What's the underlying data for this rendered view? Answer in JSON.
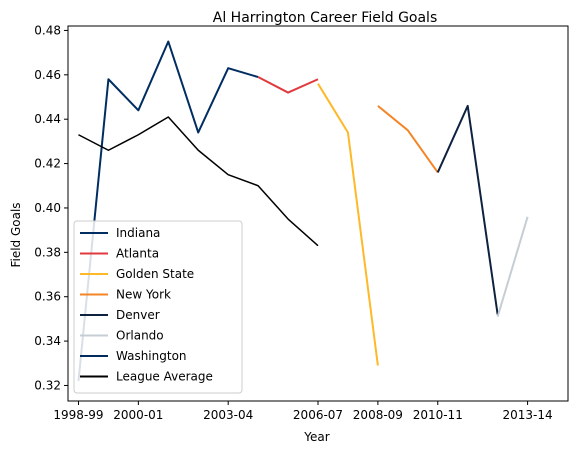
{
  "chart_data": {
    "type": "line",
    "title": "Al Harrington Career Field Goals",
    "xlabel": "Year",
    "ylabel": "Field Goals",
    "ylim": [
      0.313,
      0.482
    ],
    "xlim": [
      1997.65,
      2014.35
    ],
    "x_ticks": [
      {
        "x": 1998,
        "label": "1998-99"
      },
      {
        "x": 2000,
        "label": "2000-01"
      },
      {
        "x": 2003,
        "label": "2003-04"
      },
      {
        "x": 2006,
        "label": "2006-07"
      },
      {
        "x": 2008,
        "label": "2008-09"
      },
      {
        "x": 2010,
        "label": "2010-11"
      },
      {
        "x": 2013,
        "label": "2013-14"
      }
    ],
    "y_ticks": [
      0.32,
      0.34,
      0.36,
      0.38,
      0.4,
      0.42,
      0.44,
      0.46,
      0.48
    ],
    "legend_position": "lower-left",
    "series": [
      {
        "name": "Indiana",
        "color": "#002d62",
        "x": [
          1998,
          1999,
          2000,
          2001,
          2002,
          2003,
          2004
        ],
        "y": [
          0.322,
          0.458,
          0.444,
          0.475,
          0.434,
          0.463,
          0.459
        ]
      },
      {
        "name": "Atlanta",
        "color": "#e03a3e",
        "x": [
          2004,
          2005,
          2006
        ],
        "y": [
          0.459,
          0.452,
          0.458
        ]
      },
      {
        "name": "Golden State",
        "color": "#fdb927",
        "x": [
          2006,
          2007,
          2008
        ],
        "y": [
          0.456,
          0.434,
          0.329
        ]
      },
      {
        "name": "New York",
        "color": "#f58426",
        "x": [
          2008,
          2009,
          2010
        ],
        "y": [
          0.446,
          0.435,
          0.416
        ]
      },
      {
        "name": "Denver",
        "color": "#0e2240",
        "x": [
          2010,
          2011,
          2012
        ],
        "y": [
          0.416,
          0.446,
          0.352
        ]
      },
      {
        "name": "Orlando",
        "color": "#c4ced4",
        "x": [
          2012,
          2013
        ],
        "y": [
          0.351,
          0.396
        ]
      },
      {
        "name": "Washington",
        "color": "#002b5c",
        "x": [
          2006,
          2006
        ],
        "y": [
          0.458,
          0.458
        ]
      },
      {
        "name": "League Average",
        "color": "#000000",
        "x": [
          1998,
          1999,
          2000,
          2001,
          2002,
          2003,
          2004,
          2005,
          2006
        ],
        "y": [
          0.433,
          0.426,
          0.433,
          0.441,
          0.426,
          0.415,
          0.41,
          0.395,
          0.383
        ]
      }
    ]
  }
}
